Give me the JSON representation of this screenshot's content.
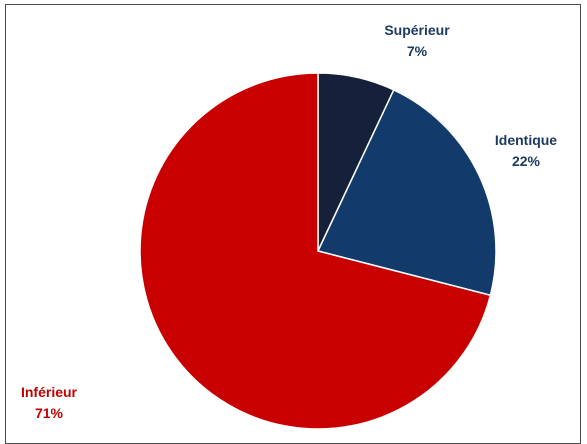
{
  "chart_data": {
    "type": "pie",
    "title": "",
    "slices": [
      {
        "label": "Supérieur",
        "value": 7,
        "value_label": "7%",
        "color": "#15203a",
        "label_color": "#1f3a60"
      },
      {
        "label": "Identique",
        "value": 22,
        "value_label": "22%",
        "color": "#123a6b",
        "label_color": "#1f3a60"
      },
      {
        "label": "Inférieur",
        "value": 71,
        "value_label": "71%",
        "color": "#c80000",
        "label_color": "#c00000"
      }
    ],
    "start_angle_deg": 0,
    "direction": "clockwise",
    "legend": "none",
    "data_labels": "outside"
  }
}
